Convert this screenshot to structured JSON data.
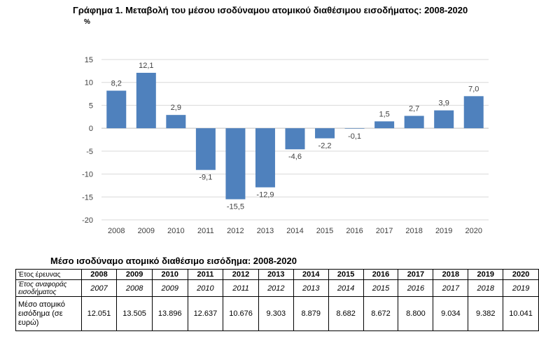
{
  "chart_data": {
    "type": "bar",
    "title": "Γράφημα 1. Μεταβολή του μέσου ισοδύναμου ατομικού διαθέσιμου εισοδήματος: 2008-2020",
    "unit": "%",
    "categories": [
      "2008",
      "2009",
      "2010",
      "2011",
      "2012",
      "2013",
      "2014",
      "2015",
      "2016",
      "2017",
      "2018",
      "2019",
      "2020"
    ],
    "values": [
      8.2,
      12.1,
      2.9,
      -9.1,
      -15.5,
      -12.9,
      -4.6,
      -2.2,
      -0.1,
      1.5,
      2.7,
      3.9,
      7.0
    ],
    "value_labels": [
      "8,2",
      "12,1",
      "2,9",
      "-9,1",
      "-15,5",
      "-12,9",
      "-4,6",
      "-2,2",
      "-0,1",
      "1,5",
      "2,7",
      "3,9",
      "7,0"
    ],
    "ylim": [
      -20,
      15
    ],
    "yticks": [
      15,
      10,
      5,
      0,
      -5,
      -10,
      -15,
      -20
    ],
    "grid": true,
    "legend": "none",
    "bar_color": "#4f81bd"
  },
  "table": {
    "title": "Μέσο ισοδύναμο ατομικό διαθέσιμο εισόδημα: 2008-2020",
    "rows": [
      {
        "label": "Έτος έρευνας",
        "cells": [
          "2008",
          "2009",
          "2010",
          "2011",
          "2012",
          "2013",
          "2014",
          "2015",
          "2016",
          "2017",
          "2018",
          "2019",
          "2020"
        ]
      },
      {
        "label": "Έτος αναφοράς εισοδήματος",
        "cells": [
          "2007",
          "2008",
          "2009",
          "2010",
          "2011",
          "2012",
          "2013",
          "2014",
          "2015",
          "2016",
          "2017",
          "2018",
          "2019"
        ]
      },
      {
        "label": "Μέσο ατομικό εισόδημα (σε ευρώ)",
        "cells": [
          "12.051",
          "13.505",
          "13.896",
          "12.637",
          "10.676",
          "9.303",
          "8.879",
          "8.682",
          "8.672",
          "8.800",
          "9.034",
          "9.382",
          "10.041"
        ]
      }
    ]
  }
}
